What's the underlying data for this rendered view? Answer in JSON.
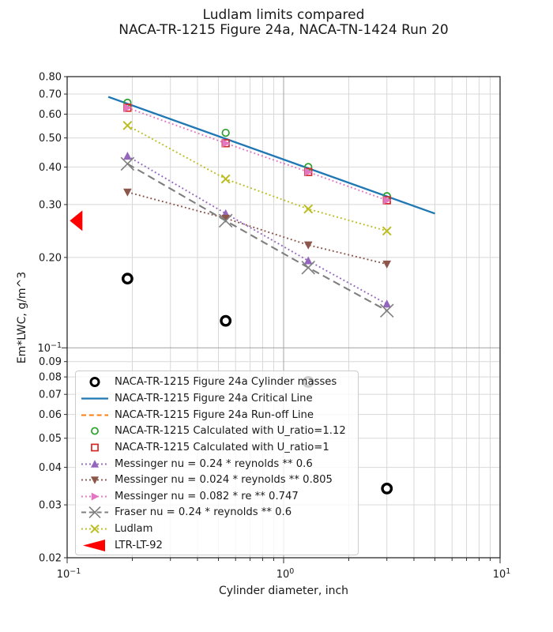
{
  "figure": {
    "background": "#ffffff"
  },
  "chart_data": {
    "type": "line+scatter",
    "title_line1": "Ludlam limits compared",
    "title_line2": "NACA-TR-1215 Figure 24a, NACA-TN-1424 Run 20",
    "xlabel": "Cylinder diameter, inch",
    "ylabel": "Em*LWC, g/m^3",
    "x_scale": "log",
    "y_scale": "log",
    "x_range": [
      0.1,
      10
    ],
    "y_range": [
      0.02,
      0.8
    ],
    "grid": "both",
    "legend_position": "lower left",
    "cylinder_diameters_inch": [
      0.19,
      0.54,
      1.3,
      3.0
    ],
    "series": [
      {
        "id": "cylinder-masses",
        "label": "NACA-TR-1215 Figure 24a Cylinder masses",
        "marker": "open-circle-bold",
        "color": "#000000",
        "line": "none",
        "x": [
          0.19,
          0.54,
          1.3,
          3.0
        ],
        "y": [
          0.17,
          0.123,
          0.077,
          0.034
        ]
      },
      {
        "id": "critical-line",
        "label": "NACA-TR-1215 Figure 24a Critical Line",
        "marker": "none",
        "color": "#1f77b4",
        "line": "solid",
        "x": [
          0.155,
          5.0
        ],
        "y": [
          0.685,
          0.28
        ]
      },
      {
        "id": "runoff-line",
        "label": "NACA-TR-1215 Figure 24a Run-off Line",
        "marker": "none",
        "color": "#ff7f0e",
        "line": "dashed",
        "x": [],
        "y": []
      },
      {
        "id": "calc-u-ratio-1-12",
        "label": "NACA-TR-1215 Calculated with U_ratio=1.12",
        "marker": "open-circle",
        "color": "#2ca02c",
        "line": "none",
        "x": [
          0.19,
          0.54,
          1.3,
          3.0
        ],
        "y": [
          0.655,
          0.52,
          0.4,
          0.32
        ]
      },
      {
        "id": "calc-u-ratio-1",
        "label": "NACA-TR-1215 Calculated with U_ratio=1",
        "marker": "open-square",
        "color": "#d62728",
        "line": "none",
        "x": [
          0.19,
          0.54,
          1.3,
          3.0
        ],
        "y": [
          0.63,
          0.48,
          0.385,
          0.31
        ]
      },
      {
        "id": "messinger-nu-024",
        "label": "Messinger nu = 0.24 * reynolds ** 0.6",
        "marker": "triangle-up",
        "color": "#9467bd",
        "line": "dotted",
        "x": [
          0.19,
          0.54,
          1.3,
          3.0
        ],
        "y": [
          0.435,
          0.28,
          0.195,
          0.14
        ]
      },
      {
        "id": "messinger-nu-0024",
        "label": "Messinger nu = 0.024 * reynolds ** 0.805",
        "marker": "triangle-down",
        "color": "#8c564b",
        "line": "dotted",
        "x": [
          0.19,
          0.54,
          1.3,
          3.0
        ],
        "y": [
          0.33,
          0.27,
          0.22,
          0.19
        ]
      },
      {
        "id": "messinger-nu-0082",
        "label": "Messinger nu = 0.082 * re ** 0.747",
        "marker": "triangle-right",
        "color": "#e377c2",
        "line": "dotted",
        "x": [
          0.19,
          0.54,
          1.3,
          3.0
        ],
        "y": [
          0.63,
          0.48,
          0.385,
          0.31
        ]
      },
      {
        "id": "fraser",
        "label": "Fraser nu = 0.24 * reynolds ** 0.6",
        "marker": "x-large",
        "color": "#7f7f7f",
        "line": "dashed",
        "x": [
          0.19,
          0.54,
          1.3,
          3.0
        ],
        "y": [
          0.41,
          0.265,
          0.185,
          0.133
        ]
      },
      {
        "id": "ludlam",
        "label": "Ludlam",
        "marker": "x",
        "color": "#bcbd22",
        "line": "dotted",
        "x": [
          0.19,
          0.54,
          1.3,
          3.0
        ],
        "y": [
          0.55,
          0.365,
          0.29,
          0.245
        ]
      },
      {
        "id": "ltr-lt-92",
        "label": "LTR-LT-92",
        "marker": "triangle-left-large",
        "color": "#ff0000",
        "line": "none",
        "x": [
          0.11
        ],
        "y": [
          0.265
        ]
      }
    ],
    "x_major_ticks": [
      {
        "value": 0.1,
        "base": "10",
        "exp": "−1"
      },
      {
        "value": 1,
        "base": "10",
        "exp": "0"
      },
      {
        "value": 10,
        "base": "10",
        "exp": "1"
      }
    ],
    "x_minor_ticks": [
      0.2,
      0.3,
      0.4,
      0.5,
      0.6,
      0.7,
      0.8,
      0.9,
      2,
      3,
      4,
      5,
      6,
      7,
      8,
      9
    ],
    "y_ticks": [
      {
        "value": 0.8,
        "label": "0.80"
      },
      {
        "value": 0.7,
        "label": "0.70"
      },
      {
        "value": 0.6,
        "label": "0.60"
      },
      {
        "value": 0.5,
        "label": "0.50"
      },
      {
        "value": 0.4,
        "label": "0.40"
      },
      {
        "value": 0.3,
        "label": "0.30"
      },
      {
        "value": 0.2,
        "label": "0.20"
      },
      {
        "value": 0.1,
        "base": "10",
        "exp": "−1",
        "major": true
      },
      {
        "value": 0.09,
        "label": "0.09"
      },
      {
        "value": 0.08,
        "label": "0.08"
      },
      {
        "value": 0.07,
        "label": "0.07"
      },
      {
        "value": 0.06,
        "label": "0.06"
      },
      {
        "value": 0.05,
        "label": "0.05"
      },
      {
        "value": 0.04,
        "label": "0.04"
      },
      {
        "value": 0.03,
        "label": "0.03"
      },
      {
        "value": 0.02,
        "label": "0.02"
      }
    ]
  }
}
